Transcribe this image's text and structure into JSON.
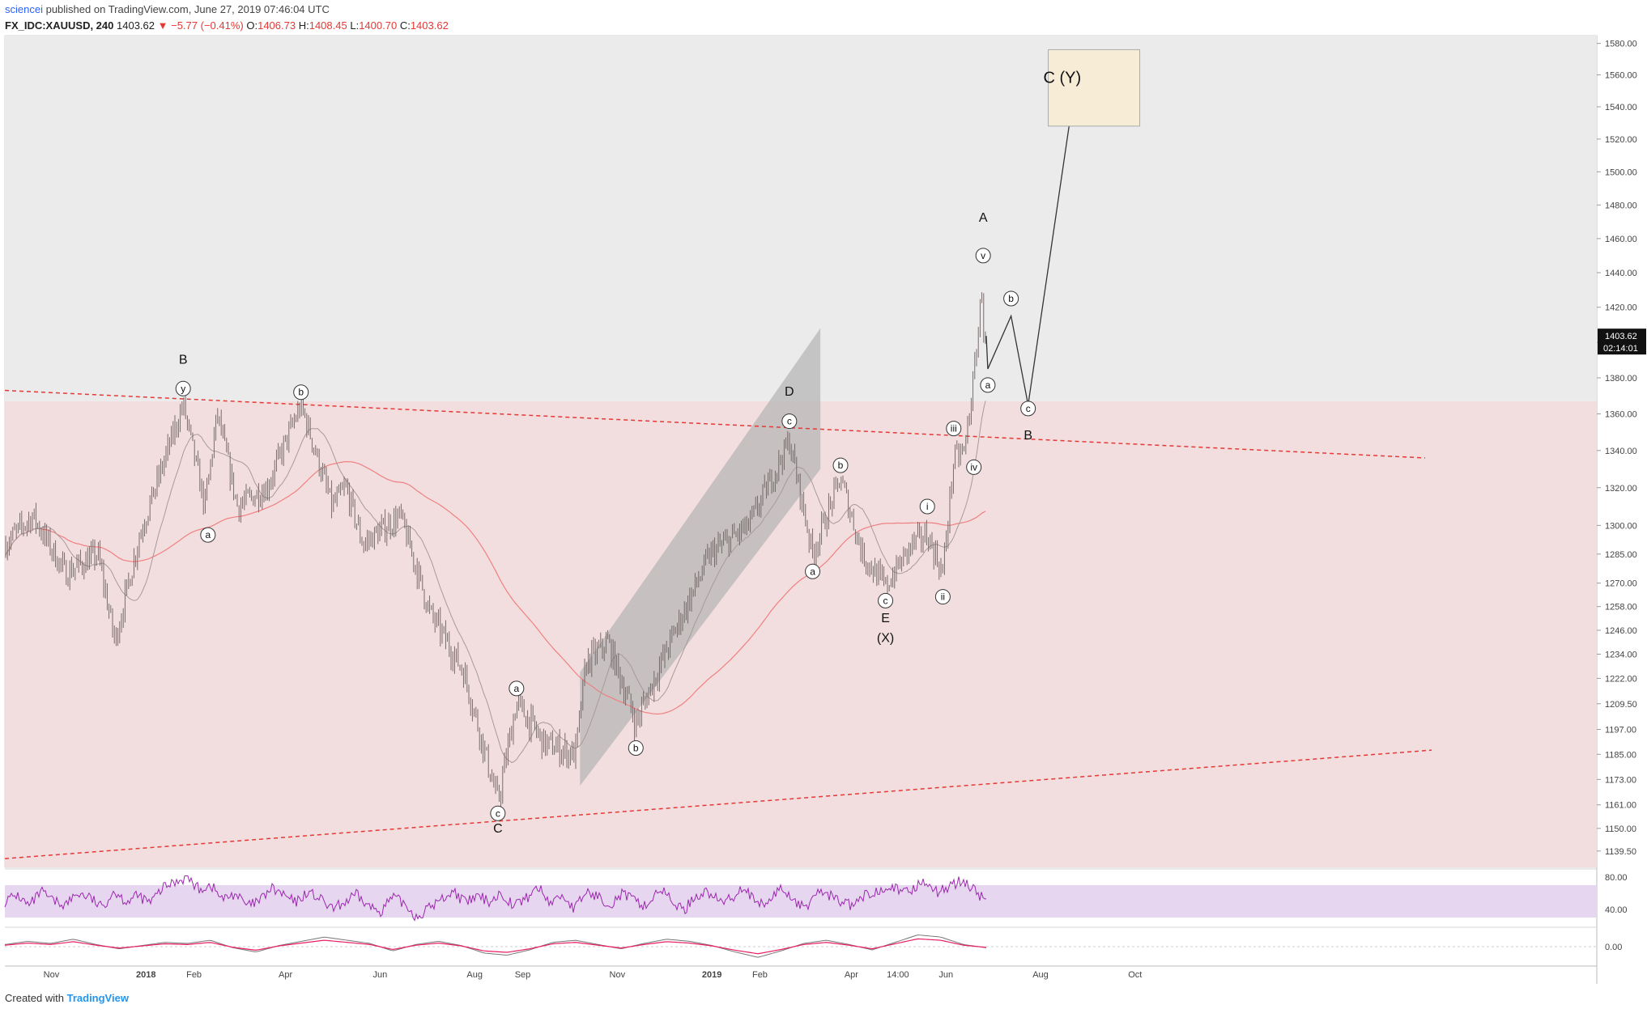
{
  "header": {
    "author": "sciencei",
    "published": "published on TradingView.com, June 27, 2019 07:46:04 UTC",
    "symbol": "FX_IDC:XAUUSD, 240",
    "last": "1403.62",
    "change": "▼ −5.77 (−0.41%)",
    "open_label": "O:",
    "open": "1406.73",
    "high_label": "H:",
    "high": "1408.45",
    "low_label": "L:",
    "low": "1400.70",
    "close_label": "C:",
    "close": "1403.62"
  },
  "footer": {
    "created": "Created with",
    "brand": "TradingView"
  },
  "price_tag": {
    "price": "1403.62",
    "countdown": "02:14:01"
  },
  "colors": {
    "candle": "#6b5f5f",
    "resistance_line": "#e53935",
    "ma_red": "#f08080",
    "zone_top": "#ebebec",
    "zone_bottom": "#f2dede",
    "channel": "#b4b4b4",
    "target_box": "#f7ecd5",
    "rsi": "#9c27b0",
    "rsi_band": "#e6d6ef"
  },
  "chart_data": [
    {
      "type": "candlestick",
      "title": "",
      "symbol": "FX_IDC:XAUUSD",
      "interval": "240",
      "y_ticks": [
        "1580.00",
        "1560.00",
        "1540.00",
        "1520.00",
        "1500.00",
        "1480.00",
        "1460.00",
        "1440.00",
        "1420.00",
        "1400.00",
        "1380.00",
        "1360.00",
        "1340.00",
        "1320.00",
        "1300.00",
        "1285.00",
        "1270.00",
        "1258.00",
        "1246.00",
        "1234.00",
        "1222.00",
        "1209.50",
        "1197.00",
        "1185.00",
        "1173.00",
        "1161.00",
        "1150.00",
        "1139.50"
      ],
      "x_ticks": [
        "Nov",
        "2018",
        "Feb",
        "Apr",
        "Jun",
        "Aug",
        "Sep",
        "Nov",
        "2019",
        "Feb",
        "Apr",
        "14:00",
        "Jun",
        "Aug",
        "Oct"
      ],
      "ylim": [
        1132,
        1585
      ],
      "log_scale": true,
      "grid": false,
      "price_path": [
        [
          "2017-10-02",
          1290
        ],
        [
          "2017-10-20",
          1305
        ],
        [
          "2017-11-10",
          1275
        ],
        [
          "2017-12-01",
          1285
        ],
        [
          "2017-12-12",
          1240
        ],
        [
          "2017-12-28",
          1295
        ],
        [
          "2018-01-25",
          1365
        ],
        [
          "2018-02-08",
          1310
        ],
        [
          "2018-02-16",
          1360
        ],
        [
          "2018-03-01",
          1310
        ],
        [
          "2018-03-20",
          1320
        ],
        [
          "2018-04-11",
          1365
        ],
        [
          "2018-05-01",
          1310
        ],
        [
          "2018-05-10",
          1320
        ],
        [
          "2018-05-21",
          1290
        ],
        [
          "2018-06-14",
          1305
        ],
        [
          "2018-07-03",
          1255
        ],
        [
          "2018-07-25",
          1225
        ],
        [
          "2018-08-16",
          1162
        ],
        [
          "2018-08-28",
          1210
        ],
        [
          "2018-09-15",
          1190
        ],
        [
          "2018-10-05",
          1185
        ],
        [
          "2018-10-12",
          1230
        ],
        [
          "2018-10-26",
          1240
        ],
        [
          "2018-11-13",
          1200
        ],
        [
          "2018-12-05",
          1240
        ],
        [
          "2018-12-31",
          1285
        ],
        [
          "2019-01-25",
          1300
        ],
        [
          "2019-02-20",
          1345
        ],
        [
          "2019-03-07",
          1285
        ],
        [
          "2019-03-25",
          1325
        ],
        [
          "2019-04-08",
          1285
        ],
        [
          "2019-04-23",
          1268
        ],
        [
          "2019-05-10",
          1290
        ],
        [
          "2019-05-20",
          1295
        ],
        [
          "2019-05-30",
          1275
        ],
        [
          "2019-06-06",
          1335
        ],
        [
          "2019-06-13",
          1340
        ],
        [
          "2019-06-19",
          1380
        ],
        [
          "2019-06-25",
          1438
        ],
        [
          "2019-06-27",
          1403.62
        ]
      ],
      "projection": [
        [
          "2019-06-27",
          1403.62
        ],
        [
          "2019-06-28",
          1385
        ],
        [
          "2019-07-13",
          1415
        ],
        [
          "2019-07-24",
          1365
        ],
        [
          "2019-08-22",
          1545
        ]
      ],
      "annotations": [
        {
          "label": "B",
          "x": "2018-01-25",
          "y": 1388
        },
        {
          "label": "y",
          "x": "2018-01-25",
          "y": 1374,
          "circled": true
        },
        {
          "label": "a",
          "x": "2018-02-10",
          "y": 1295,
          "circled": true
        },
        {
          "label": "b",
          "x": "2018-04-11",
          "y": 1372,
          "circled": true
        },
        {
          "label": "a",
          "x": "2018-08-28",
          "y": 1217,
          "circled": true
        },
        {
          "label": "c",
          "x": "2018-08-16",
          "y": 1157,
          "circled": true
        },
        {
          "label": "C",
          "x": "2018-08-16",
          "y": 1148
        },
        {
          "label": "b",
          "x": "2018-11-13",
          "y": 1188,
          "circled": true
        },
        {
          "label": "D",
          "x": "2019-02-20",
          "y": 1370
        },
        {
          "label": "c",
          "x": "2019-02-20",
          "y": 1356,
          "circled": true
        },
        {
          "label": "a",
          "x": "2019-03-07",
          "y": 1276,
          "circled": true
        },
        {
          "label": "b",
          "x": "2019-03-25",
          "y": 1332,
          "circled": true
        },
        {
          "label": "c",
          "x": "2019-04-23",
          "y": 1261,
          "circled": true
        },
        {
          "label": "E",
          "x": "2019-04-23",
          "y": 1250
        },
        {
          "label": "(X)",
          "x": "2019-04-23",
          "y": 1240
        },
        {
          "label": "i",
          "x": "2019-05-20",
          "y": 1310,
          "circled": true
        },
        {
          "label": "ii",
          "x": "2019-05-30",
          "y": 1263,
          "circled": true
        },
        {
          "label": "iii",
          "x": "2019-06-06",
          "y": 1352,
          "circled": true
        },
        {
          "label": "iv",
          "x": "2019-06-19",
          "y": 1331,
          "circled": true
        },
        {
          "label": "v",
          "x": "2019-06-25",
          "y": 1450,
          "circled": true
        },
        {
          "label": "A",
          "x": "2019-06-25",
          "y": 1470
        },
        {
          "label": "a",
          "x": "2019-06-28",
          "y": 1376,
          "circled": true
        },
        {
          "label": "b",
          "x": "2019-07-13",
          "y": 1425,
          "circled": true
        },
        {
          "label": "c",
          "x": "2019-07-24",
          "y": 1363,
          "circled": true
        },
        {
          "label": "B",
          "x": "2019-07-24",
          "y": 1346
        },
        {
          "label": "C (Y)",
          "x": "2019-08-15",
          "y": 1555
        }
      ]
    },
    {
      "type": "line",
      "title": "",
      "indicator": "RSI",
      "y_ticks": [
        "80.00",
        "40.00"
      ],
      "ylim": [
        20,
        88
      ],
      "band": [
        30,
        70
      ],
      "values": [
        50,
        58,
        44,
        62,
        50,
        46,
        60,
        55,
        42,
        63,
        50,
        57,
        48,
        66,
        74,
        80,
        65,
        70,
        52,
        60,
        44,
        50,
        66,
        58,
        48,
        62,
        53,
        40,
        48,
        58,
        44,
        38,
        55,
        47,
        30,
        42,
        52,
        63,
        48,
        56,
        50,
        60,
        45,
        53,
        68,
        48,
        58,
        40,
        62,
        55,
        47,
        60,
        50,
        44,
        66,
        52,
        38,
        57,
        62,
        49,
        54,
        70,
        45,
        48,
        67,
        54,
        40,
        62,
        58,
        50,
        44,
        57,
        63,
        72,
        59,
        66,
        77,
        60,
        70,
        75,
        65,
        50
      ]
    },
    {
      "type": "line",
      "title": "",
      "indicator": "MACD",
      "y_ticks": [
        "0.00"
      ],
      "ylim": [
        -1.5,
        1.5
      ],
      "values": [
        0.2,
        0.5,
        0.3,
        0.7,
        0.2,
        -0.2,
        0.1,
        0.4,
        0.3,
        0.6,
        -0.1,
        -0.5,
        0.1,
        0.5,
        0.9,
        0.6,
        0.3,
        -0.4,
        0.2,
        0.5,
        0.1,
        -0.6,
        -0.8,
        -0.3,
        0.4,
        0.6,
        0.2,
        -0.2,
        0.3,
        0.7,
        0.5,
        0.1,
        -0.5,
        -1.0,
        -0.4,
        0.3,
        0.6,
        0.2,
        -0.3,
        0.4,
        1.1,
        0.9,
        0.2,
        -0.1
      ]
    }
  ]
}
